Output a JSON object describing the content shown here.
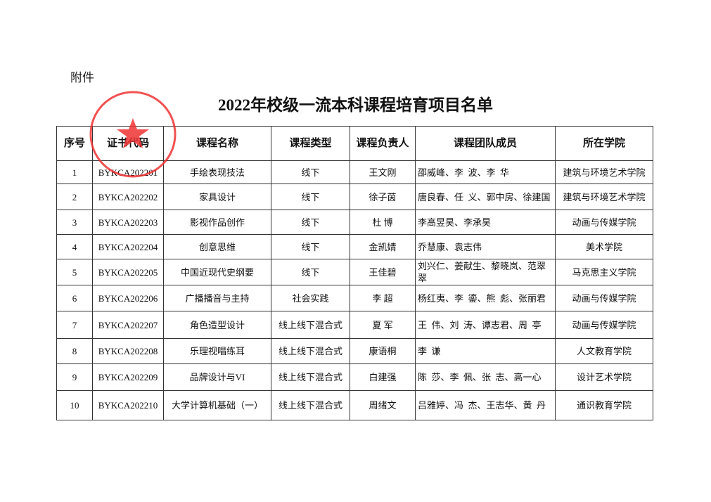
{
  "header": {
    "attachment": "附件",
    "title": "2022年校级一流本科课程培育项目名单"
  },
  "table": {
    "columns": [
      "序号",
      "证书代码",
      "课程名称",
      "课程类型",
      "课程负责人",
      "课程团队成员",
      "所在学院"
    ],
    "rows": [
      [
        "1",
        "BYKCA202201",
        "手绘表现技法",
        "线下",
        "王文刚",
        "邵威峰、李  波、李  华",
        "建筑与环境艺术学院"
      ],
      [
        "2",
        "BYKCA202202",
        "家具设计",
        "线下",
        "徐子茵",
        "唐良春、任  义、郭中房、徐建国",
        "建筑与环境艺术学院"
      ],
      [
        "3",
        "BYKCA202203",
        "影视作品创作",
        "线下",
        "杜  博",
        "李高昱昊、李承昊",
        "动画与传媒学院"
      ],
      [
        "4",
        "BYKCA202204",
        "创意思维",
        "线下",
        "金凯婧",
        "乔慧康、袁志伟",
        "美术学院"
      ],
      [
        "5",
        "BYKCA202205",
        "中国近现代史纲要",
        "线下",
        "王佳碧",
        "刘兴仁、姜献生、黎晓岚、范翠翠",
        "马克思主义学院"
      ],
      [
        "6",
        "BYKCA202206",
        "广播播音与主持",
        "社会实践",
        "李  超",
        "杨红夷、李  鎏、熊  彪、张丽君",
        "动画与传媒学院"
      ],
      [
        "7",
        "BYKCA202207",
        "角色造型设计",
        "线上线下混合式",
        "夏  军",
        "王  伟、刘  涛、谭志君、周  亭",
        "动画与传媒学院"
      ],
      [
        "8",
        "BYKCA202208",
        "乐理视唱练耳",
        "线上线下混合式",
        "康语桐",
        "李  谦",
        "人文教育学院"
      ],
      [
        "9",
        "BYKCA202209",
        "品牌设计与VI",
        "线上线下混合式",
        "白建强",
        "陈  莎、李  佩、张  志、高一心",
        "设计艺术学院"
      ],
      [
        "10",
        "BYKCA202210",
        "大学计算机基础（一）",
        "线上线下混合式",
        "周绪文",
        "吕雅婷、冯  杰、王志华、黄  丹",
        "通识教育学院"
      ]
    ]
  }
}
